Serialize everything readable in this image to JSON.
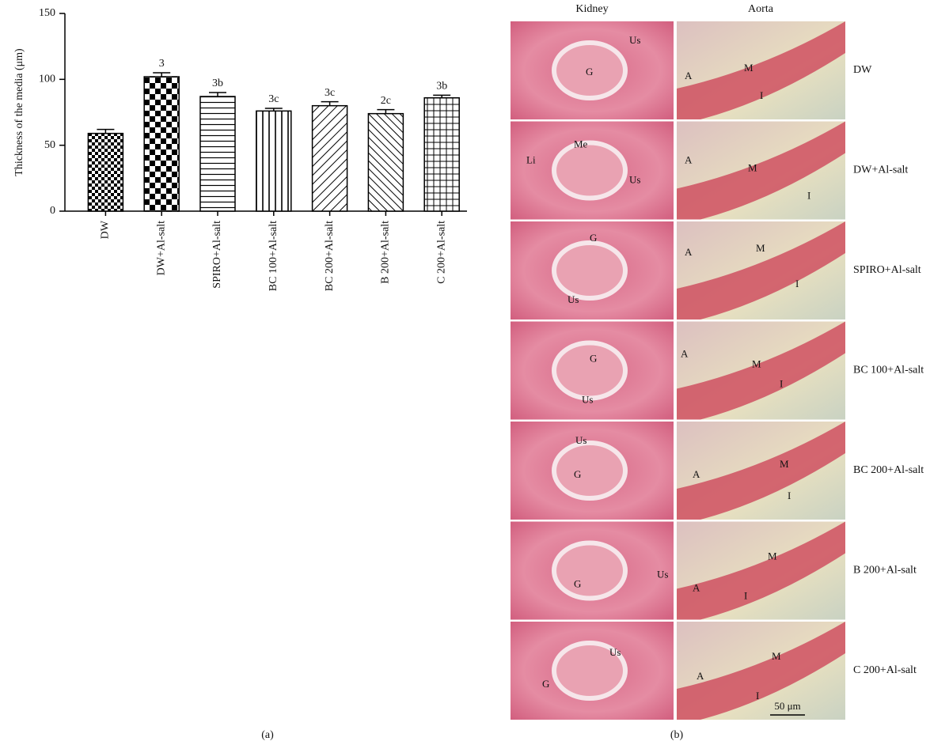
{
  "chart_data": {
    "type": "bar",
    "y_label": "Thickness of the media (μm)",
    "categories": [
      "DW",
      "DW+Al-salt",
      "SPIRO+Al-salt",
      "BC 100+Al-salt",
      "BC 200+Al-salt",
      "B 200+Al-salt",
      "C 200+Al-salt"
    ],
    "values": [
      59,
      102,
      87,
      76,
      80,
      74,
      86
    ],
    "errors": [
      3,
      3,
      3,
      2,
      3,
      3,
      2
    ],
    "annotations": [
      null,
      "3",
      "3b",
      "3c",
      "3c",
      "2c",
      "3b"
    ],
    "ylim": [
      0,
      150
    ],
    "yticks": [
      0,
      50,
      100,
      150
    ],
    "color": "#000000"
  },
  "panel_labels": [
    "(a)",
    "(b)"
  ],
  "histology": {
    "columns": [
      "Kidney",
      "Aorta"
    ],
    "rows": [
      {
        "label": "DW",
        "kidney": [
          "Us",
          "G"
        ],
        "aorta": [
          "A",
          "M",
          "I"
        ]
      },
      {
        "label": "DW+Al-salt",
        "kidney": [
          "Li",
          "Me",
          "Us"
        ],
        "aorta": [
          "A",
          "M",
          "I"
        ]
      },
      {
        "label": "SPIRO+Al-salt",
        "kidney": [
          "G",
          "Us"
        ],
        "aorta": [
          "A",
          "M",
          "I"
        ]
      },
      {
        "label": "BC 100+Al-salt",
        "kidney": [
          "G",
          "Us"
        ],
        "aorta": [
          "A",
          "M",
          "I"
        ]
      },
      {
        "label": "BC 200+Al-salt",
        "kidney": [
          "Us",
          "G"
        ],
        "aorta": [
          "A",
          "M",
          "I"
        ]
      },
      {
        "label": "B 200+Al-salt",
        "kidney": [
          "Us",
          "G"
        ],
        "aorta": [
          "A",
          "M",
          "I"
        ]
      },
      {
        "label": "C 200+Al-salt",
        "kidney": [
          "Us",
          "G"
        ],
        "aorta": [
          "A",
          "M",
          "I"
        ]
      }
    ],
    "scale_bar": "50 μm"
  }
}
